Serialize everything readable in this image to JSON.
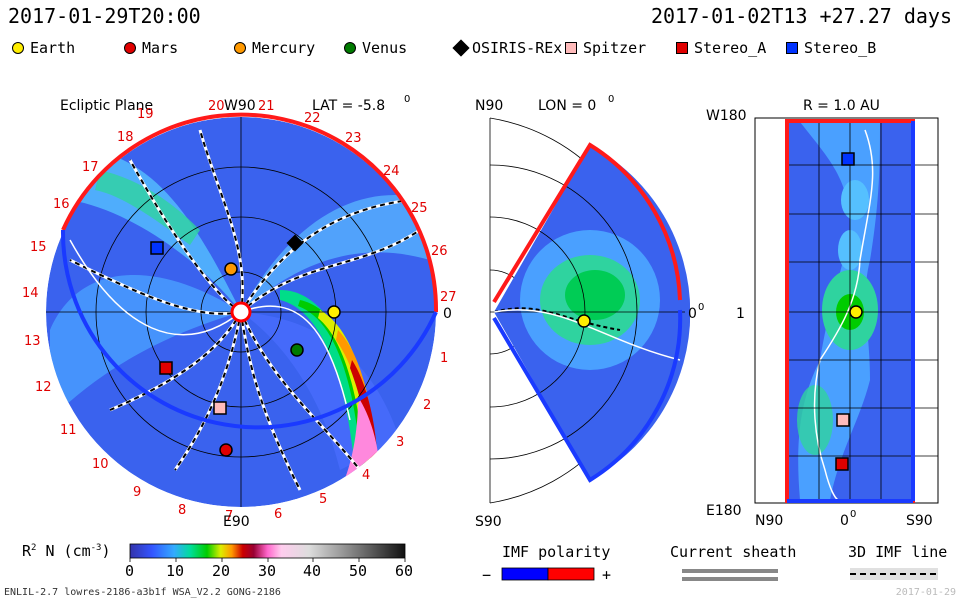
{
  "header": {
    "left_time": "2017-01-29T20:00",
    "right_time": "2017-01-02T13 +27.27 days"
  },
  "legend": [
    {
      "label": "Earth",
      "color": "#ffee00",
      "shape": "circle"
    },
    {
      "label": "Mars",
      "color": "#e00000",
      "shape": "circle"
    },
    {
      "label": "Mercury",
      "color": "#ff9900",
      "shape": "circle"
    },
    {
      "label": "Venus",
      "color": "#007a00",
      "shape": "circle"
    },
    {
      "label": "OSIRIS-REx",
      "color": "#000000",
      "shape": "diamond"
    },
    {
      "label": "Spitzer",
      "color": "#ffbbbb",
      "shape": "square"
    },
    {
      "label": "Stereo_A",
      "color": "#e00000",
      "shape": "square"
    },
    {
      "label": "Stereo_B",
      "color": "#0033ff",
      "shape": "square"
    }
  ],
  "ecliptic": {
    "title": "Ecliptic Plane",
    "top_label": "W90",
    "bottom_label": "E90",
    "zero_label": "0",
    "lat": "LAT = -5.8",
    "lat_deg": "0",
    "numbers": [
      "19",
      "20",
      "21",
      "22",
      "23",
      "24",
      "25",
      "26",
      "27",
      "1",
      "2",
      "3",
      "4",
      "5",
      "6",
      "7",
      "8",
      "9",
      "10",
      "11",
      "12",
      "13",
      "14",
      "15",
      "16",
      "17",
      "18"
    ]
  },
  "meridional": {
    "lon": "LON = 0",
    "lon_deg": "0",
    "top_label": "N90",
    "bottom_label": "S90",
    "zero_label": "0",
    "zero_deg": "0"
  },
  "radial": {
    "title": "R = 1.0 AU",
    "top_label": "W180",
    "bottom_label": "E180",
    "mid_label": "1",
    "x_left": "N90",
    "x_mid": "0",
    "x_mid_deg": "0",
    "x_right": "S90"
  },
  "colorbar": {
    "label": "R",
    "label_sup": "2",
    "label_rest": " N (cm",
    "label_exp": "-3",
    "label_close": ")",
    "ticks": [
      "0",
      "10",
      "20",
      "30",
      "40",
      "50",
      "60"
    ],
    "min": 0,
    "max": 60
  },
  "imf": {
    "title": "IMF polarity",
    "minus": "−",
    "plus": "+",
    "colors": {
      "negative": "#0000ff",
      "positive": "#ff0000"
    }
  },
  "current_sheath": {
    "title": "Current sheath"
  },
  "imf_line": {
    "title": "3D IMF line"
  },
  "footer": {
    "left": "ENLIL-2.7 lowres-2186-a3b1f WSA_V2.2 GONG-2186",
    "right": "2017-01-29"
  }
}
